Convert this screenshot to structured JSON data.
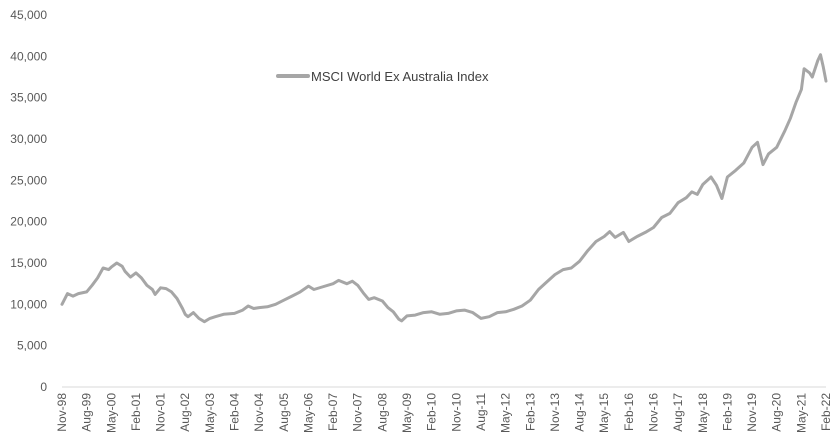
{
  "chart_data": {
    "type": "line",
    "legend": {
      "position": "top-left-inside"
    },
    "grid": false,
    "ylim": [
      0,
      45000
    ],
    "yticks": [
      0,
      5000,
      10000,
      15000,
      20000,
      25000,
      30000,
      35000,
      40000,
      45000
    ],
    "ytick_labels": [
      "0",
      "5,000",
      "10,000",
      "15,000",
      "20,000",
      "25,000",
      "30,000",
      "35,000",
      "40,000",
      "45,000"
    ],
    "xtick_labels": [
      "Nov-98",
      "Aug-99",
      "May-00",
      "Feb-01",
      "Nov-01",
      "Aug-02",
      "May-03",
      "Feb-04",
      "Nov-04",
      "Aug-05",
      "May-06",
      "Feb-07",
      "Nov-07",
      "Aug-08",
      "May-09",
      "Feb-10",
      "Nov-10",
      "Aug-11",
      "May-12",
      "Feb-13",
      "Nov-13",
      "Aug-14",
      "May-15",
      "Feb-16",
      "Nov-16",
      "Aug-17",
      "May-18",
      "Feb-19",
      "Nov-19",
      "Aug-20",
      "May-21",
      "Feb-22"
    ],
    "series": [
      {
        "name": "MSCI World Ex Australia Index",
        "color": "#a6a6a6",
        "points": [
          [
            "Nov-98",
            10000
          ],
          [
            "Jan-99",
            11300
          ],
          [
            "Mar-99",
            11000
          ],
          [
            "May-99",
            11300
          ],
          [
            "Aug-99",
            11500
          ],
          [
            "Oct-99",
            12300
          ],
          [
            "Dec-99",
            13200
          ],
          [
            "Feb-00",
            14400
          ],
          [
            "Apr-00",
            14200
          ],
          [
            "May-00",
            14500
          ],
          [
            "Jul-00",
            15000
          ],
          [
            "Sep-00",
            14600
          ],
          [
            "Oct-00",
            14000
          ],
          [
            "Dec-00",
            13300
          ],
          [
            "Feb-01",
            13800
          ],
          [
            "Apr-01",
            13200
          ],
          [
            "Jun-01",
            12300
          ],
          [
            "Aug-01",
            11800
          ],
          [
            "Sep-01",
            11200
          ],
          [
            "Nov-01",
            12000
          ],
          [
            "Jan-02",
            11900
          ],
          [
            "Mar-02",
            11500
          ],
          [
            "May-02",
            10700
          ],
          [
            "Jul-02",
            9500
          ],
          [
            "Aug-02",
            8800
          ],
          [
            "Sep-02",
            8500
          ],
          [
            "Nov-02",
            9000
          ],
          [
            "Jan-03",
            8300
          ],
          [
            "Mar-03",
            7900
          ],
          [
            "May-03",
            8300
          ],
          [
            "Jul-03",
            8500
          ],
          [
            "Oct-03",
            8800
          ],
          [
            "Feb-04",
            8900
          ],
          [
            "May-04",
            9300
          ],
          [
            "Jul-04",
            9800
          ],
          [
            "Sep-04",
            9500
          ],
          [
            "Nov-04",
            9600
          ],
          [
            "Feb-05",
            9700
          ],
          [
            "May-05",
            10000
          ],
          [
            "Aug-05",
            10500
          ],
          [
            "Nov-05",
            11000
          ],
          [
            "Feb-06",
            11500
          ],
          [
            "May-06",
            12200
          ],
          [
            "Jul-06",
            11800
          ],
          [
            "Oct-06",
            12100
          ],
          [
            "Feb-07",
            12500
          ],
          [
            "Apr-07",
            12900
          ],
          [
            "Jul-07",
            12500
          ],
          [
            "Sep-07",
            12800
          ],
          [
            "Nov-07",
            12300
          ],
          [
            "Jan-08",
            11400
          ],
          [
            "Mar-08",
            10600
          ],
          [
            "May-08",
            10800
          ],
          [
            "Aug-08",
            10400
          ],
          [
            "Oct-08",
            9600
          ],
          [
            "Dec-08",
            9100
          ],
          [
            "Feb-09",
            8200
          ],
          [
            "Mar-09",
            8000
          ],
          [
            "May-09",
            8600
          ],
          [
            "Aug-09",
            8700
          ],
          [
            "Nov-09",
            9000
          ],
          [
            "Feb-10",
            9100
          ],
          [
            "May-10",
            8800
          ],
          [
            "Aug-10",
            8900
          ],
          [
            "Nov-10",
            9200
          ],
          [
            "Feb-11",
            9300
          ],
          [
            "May-11",
            9000
          ],
          [
            "Aug-11",
            8300
          ],
          [
            "Nov-11",
            8500
          ],
          [
            "Feb-12",
            9000
          ],
          [
            "May-12",
            9100
          ],
          [
            "Aug-12",
            9400
          ],
          [
            "Nov-12",
            9800
          ],
          [
            "Feb-13",
            10500
          ],
          [
            "May-13",
            11800
          ],
          [
            "Aug-13",
            12700
          ],
          [
            "Nov-13",
            13600
          ],
          [
            "Feb-14",
            14200
          ],
          [
            "May-14",
            14400
          ],
          [
            "Aug-14",
            15200
          ],
          [
            "Nov-14",
            16500
          ],
          [
            "Feb-15",
            17600
          ],
          [
            "May-15",
            18200
          ],
          [
            "Jul-15",
            18800
          ],
          [
            "Sep-15",
            18100
          ],
          [
            "Dec-15",
            18700
          ],
          [
            "Feb-16",
            17600
          ],
          [
            "May-16",
            18200
          ],
          [
            "Aug-16",
            18700
          ],
          [
            "Nov-16",
            19300
          ],
          [
            "Feb-17",
            20500
          ],
          [
            "May-17",
            21000
          ],
          [
            "Aug-17",
            22300
          ],
          [
            "Nov-17",
            22900
          ],
          [
            "Jan-18",
            23600
          ],
          [
            "Mar-18",
            23300
          ],
          [
            "May-18",
            24500
          ],
          [
            "Aug-18",
            25400
          ],
          [
            "Oct-18",
            24400
          ],
          [
            "Dec-18",
            22800
          ],
          [
            "Feb-19",
            25400
          ],
          [
            "May-19",
            26200
          ],
          [
            "Aug-19",
            27100
          ],
          [
            "Nov-19",
            29000
          ],
          [
            "Jan-20",
            29600
          ],
          [
            "Mar-20",
            26900
          ],
          [
            "May-20",
            28200
          ],
          [
            "Aug-20",
            29000
          ],
          [
            "Nov-20",
            31000
          ],
          [
            "Jan-21",
            32500
          ],
          [
            "Mar-21",
            34400
          ],
          [
            "May-21",
            36000
          ],
          [
            "Jun-21",
            38500
          ],
          [
            "Aug-21",
            38000
          ],
          [
            "Sep-21",
            37500
          ],
          [
            "Nov-21",
            39500
          ],
          [
            "Dec-21",
            40200
          ],
          [
            "Jan-22",
            38700
          ],
          [
            "Feb-22",
            37000
          ]
        ]
      }
    ]
  }
}
